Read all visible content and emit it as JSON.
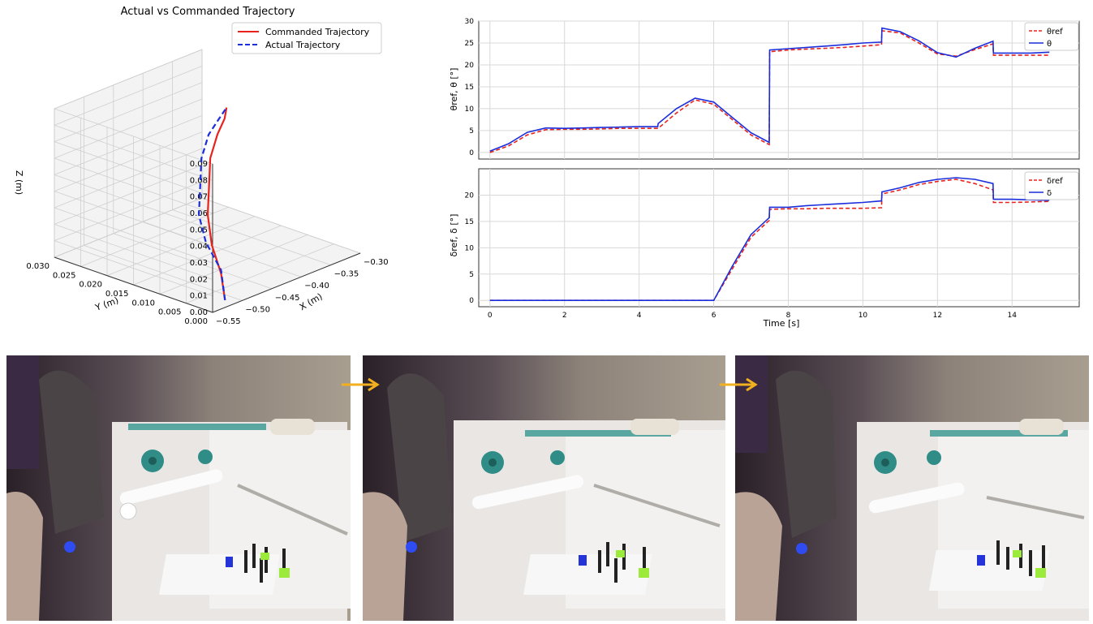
{
  "chart_data": [
    {
      "type": "line3d",
      "title": "Actual vs Commanded Trajectory",
      "xlabel": "X (m)",
      "ylabel": "Y (m)",
      "zlabel": "Z (m)",
      "xlim": [
        -0.55,
        -0.3
      ],
      "ylim": [
        0.0,
        0.03
      ],
      "zlim": [
        0.0,
        0.09
      ],
      "xticks": [
        "−0.55",
        "−0.50",
        "−0.45",
        "−0.40",
        "−0.35",
        "−0.30"
      ],
      "yticks": [
        "0.000",
        "0.005",
        "0.010",
        "0.015",
        "0.020",
        "0.025",
        "0.030"
      ],
      "zticks": [
        "0.00",
        "0.01",
        "0.02",
        "0.03",
        "0.04",
        "0.05",
        "0.06",
        "0.07",
        "0.08",
        "0.09"
      ],
      "legend": {
        "position": "upper-right"
      },
      "grid": true,
      "series": [
        {
          "name": "Commanded Trajectory",
          "style": "solid",
          "color": "#e8231d",
          "points": [
            [
              -0.52,
              0.001,
              0.002
            ],
            [
              -0.5,
              0.004,
              0.012
            ],
            [
              -0.48,
              0.008,
              0.022
            ],
            [
              -0.46,
              0.011,
              0.034
            ],
            [
              -0.44,
              0.013,
              0.046
            ],
            [
              -0.42,
              0.015,
              0.058
            ],
            [
              -0.39,
              0.017,
              0.066
            ],
            [
              -0.36,
              0.019,
              0.069
            ],
            [
              -0.33,
              0.022,
              0.068
            ]
          ]
        },
        {
          "name": "Actual Trajectory",
          "style": "dashed",
          "color": "#1a2edc",
          "points": [
            [
              -0.52,
              0.001,
              0.002
            ],
            [
              -0.5,
              0.004,
              0.014
            ],
            [
              -0.49,
              0.008,
              0.025
            ],
            [
              -0.475,
              0.011,
              0.036
            ],
            [
              -0.455,
              0.013,
              0.048
            ],
            [
              -0.435,
              0.015,
              0.06
            ],
            [
              -0.405,
              0.017,
              0.068
            ],
            [
              -0.37,
              0.019,
              0.07
            ],
            [
              -0.33,
              0.022,
              0.068
            ]
          ]
        }
      ]
    },
    {
      "type": "line",
      "ylabel": "θref, θ [°]",
      "xlim": [
        -0.3,
        15.8
      ],
      "ylim": [
        -1.5,
        30
      ],
      "yticks": [
        0,
        5,
        10,
        15,
        20,
        25,
        30
      ],
      "xticks": [
        0,
        2,
        4,
        6,
        8,
        10,
        12,
        14
      ],
      "grid": true,
      "legend": {
        "position": "upper-right"
      },
      "series": [
        {
          "name": "θref",
          "style": "dashed",
          "color": "#e8231d",
          "x": [
            0,
            0.5,
            1,
            1.5,
            2,
            2.5,
            3,
            3.5,
            4,
            4.5,
            4.51,
            5,
            5.5,
            6,
            6.5,
            7,
            7.49,
            7.5,
            8,
            8.5,
            9,
            9.5,
            10,
            10.5,
            10.51,
            11,
            11.5,
            12,
            12.5,
            13,
            13.49,
            13.5,
            14,
            14.5,
            15
          ],
          "y": [
            0,
            1.5,
            4,
            5.2,
            5.3,
            5.3,
            5.4,
            5.5,
            5.5,
            5.5,
            5.5,
            9,
            12,
            11,
            7.5,
            4,
            1.8,
            23,
            23.4,
            23.6,
            23.8,
            24,
            24.3,
            24.6,
            27.8,
            27.3,
            25,
            22.5,
            22,
            23.5,
            24.8,
            22.2,
            22.2,
            22.2,
            22.2
          ]
        },
        {
          "name": "θ",
          "style": "solid",
          "color": "#1a2edc",
          "x": [
            0,
            0.5,
            1,
            1.5,
            2,
            2.5,
            3,
            3.5,
            4,
            4.5,
            4.51,
            5,
            5.5,
            6,
            6.5,
            7,
            7.49,
            7.5,
            8,
            8.5,
            9,
            9.5,
            10,
            10.5,
            10.51,
            11,
            11.5,
            12,
            12.5,
            13,
            13.49,
            13.5,
            14,
            14.5,
            15
          ],
          "y": [
            0.3,
            2,
            4.6,
            5.6,
            5.5,
            5.6,
            5.7,
            5.8,
            5.9,
            5.9,
            6.6,
            10,
            12.4,
            11.5,
            8,
            4.5,
            2.3,
            23.4,
            23.7,
            24,
            24.3,
            24.6,
            25,
            25.2,
            28.4,
            27.6,
            25.5,
            22.8,
            21.8,
            23.8,
            25.4,
            22.7,
            22.7,
            22.7,
            22.9
          ]
        }
      ]
    },
    {
      "type": "line",
      "xlabel": "Time [s]",
      "ylabel": "δref, δ [°]",
      "xlim": [
        -0.3,
        15.8
      ],
      "ylim": [
        -1.2,
        25
      ],
      "yticks": [
        0,
        5,
        10,
        15,
        20
      ],
      "xticks": [
        0,
        2,
        4,
        6,
        8,
        10,
        12,
        14
      ],
      "grid": true,
      "legend": {
        "position": "upper-right"
      },
      "series": [
        {
          "name": "δref",
          "style": "dashed",
          "color": "#e8231d",
          "x": [
            0,
            2,
            4,
            6,
            6.5,
            7,
            7.49,
            7.5,
            8,
            8.5,
            9,
            9.5,
            10,
            10.5,
            10.51,
            11,
            11.5,
            12,
            12.5,
            13,
            13.49,
            13.5,
            14,
            14.5,
            15
          ],
          "y": [
            0,
            0,
            0,
            0,
            6,
            12,
            15.2,
            17.3,
            17.4,
            17.4,
            17.5,
            17.5,
            17.5,
            17.6,
            20.2,
            21,
            22,
            22.6,
            23,
            22.2,
            21,
            18.6,
            18.6,
            18.7,
            18.8
          ]
        },
        {
          "name": "δ",
          "style": "solid",
          "color": "#1a2edc",
          "x": [
            0,
            2,
            4,
            6,
            6.5,
            7,
            7.49,
            7.5,
            8,
            8.5,
            9,
            9.5,
            10,
            10.5,
            10.51,
            11,
            11.5,
            12,
            12.5,
            13,
            13.49,
            13.5,
            14,
            14.5,
            15
          ],
          "y": [
            0,
            0,
            0,
            0,
            6.5,
            12.5,
            15.7,
            17.7,
            17.7,
            18,
            18.2,
            18.4,
            18.6,
            18.9,
            20.6,
            21.4,
            22.4,
            23,
            23.3,
            23,
            22.2,
            19.2,
            19.2,
            19.1,
            19
          ]
        }
      ]
    }
  ],
  "photos": [
    {
      "name": "frame-1"
    },
    {
      "name": "frame-2"
    },
    {
      "name": "frame-3"
    }
  ],
  "colors": {
    "commanded": "#e8231d",
    "actual": "#1a2edc",
    "arrow": "#f2b01e"
  }
}
